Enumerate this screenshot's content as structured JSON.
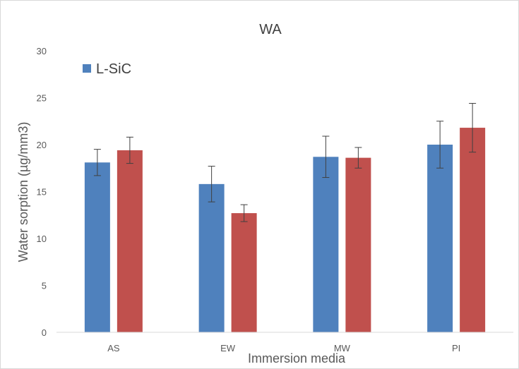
{
  "chart_data": {
    "type": "bar",
    "title": "WA",
    "xlabel": "Immersion media",
    "ylabel": "Water sorption (µg/mm3)",
    "categories": [
      "AS",
      "EW",
      "MW",
      "PI"
    ],
    "ylim": [
      0,
      30
    ],
    "yticks": [
      0,
      5,
      10,
      15,
      20,
      25,
      30
    ],
    "grid": false,
    "legend": {
      "placement": "top-left",
      "entries": [
        "L-SiC"
      ]
    },
    "series": [
      {
        "name": "L-SiC",
        "color": "#4F81BD",
        "values": [
          18.1,
          15.8,
          18.7,
          20.0
        ],
        "errors": [
          1.4,
          1.9,
          2.2,
          2.5
        ]
      },
      {
        "color": "#C0504D",
        "values": [
          19.4,
          12.7,
          18.6,
          21.8
        ],
        "errors": [
          1.4,
          0.9,
          1.1,
          2.6
        ]
      }
    ]
  }
}
